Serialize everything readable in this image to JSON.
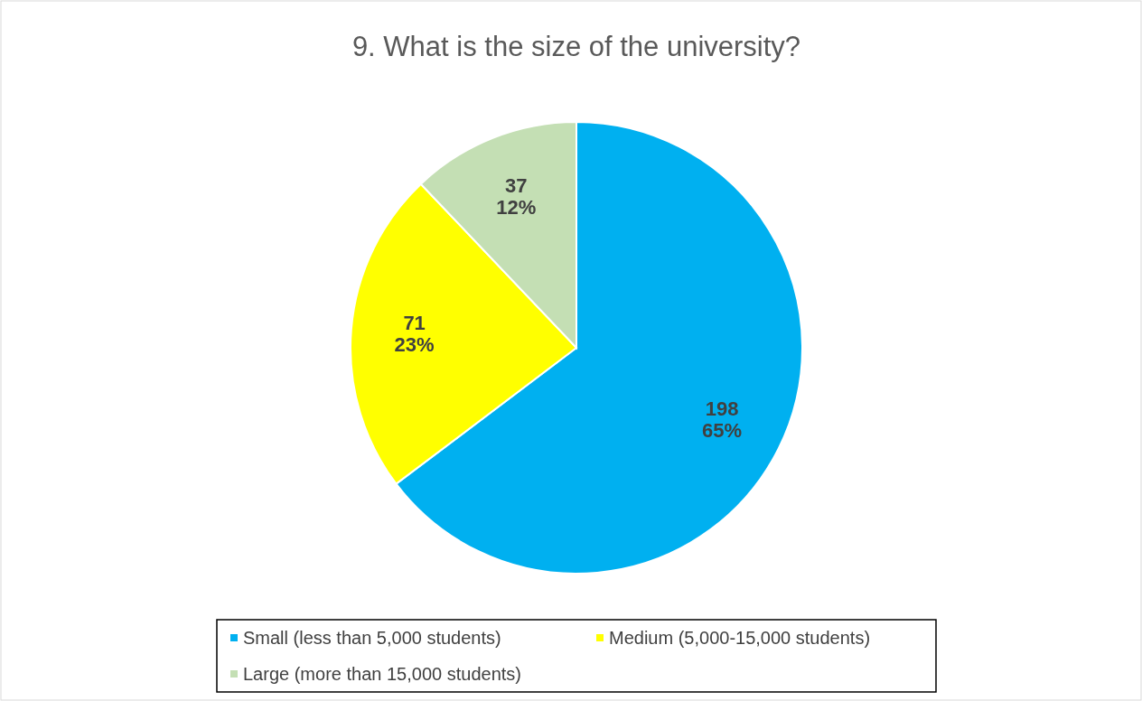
{
  "chart_data": {
    "type": "pie",
    "title": "9. What is the size of the university?",
    "categories": [
      "Small (less than 5,000 students)",
      "Medium (5,000-15,000 students)",
      "Large (more than 15,000 students)"
    ],
    "values": [
      198,
      71,
      37
    ],
    "colors": [
      "#00b0f0",
      "#ffff00",
      "#c4dfb4"
    ],
    "value_labels": [
      "198\n65%",
      "71\n23%",
      "37\n12%"
    ],
    "legend": "bottom"
  }
}
